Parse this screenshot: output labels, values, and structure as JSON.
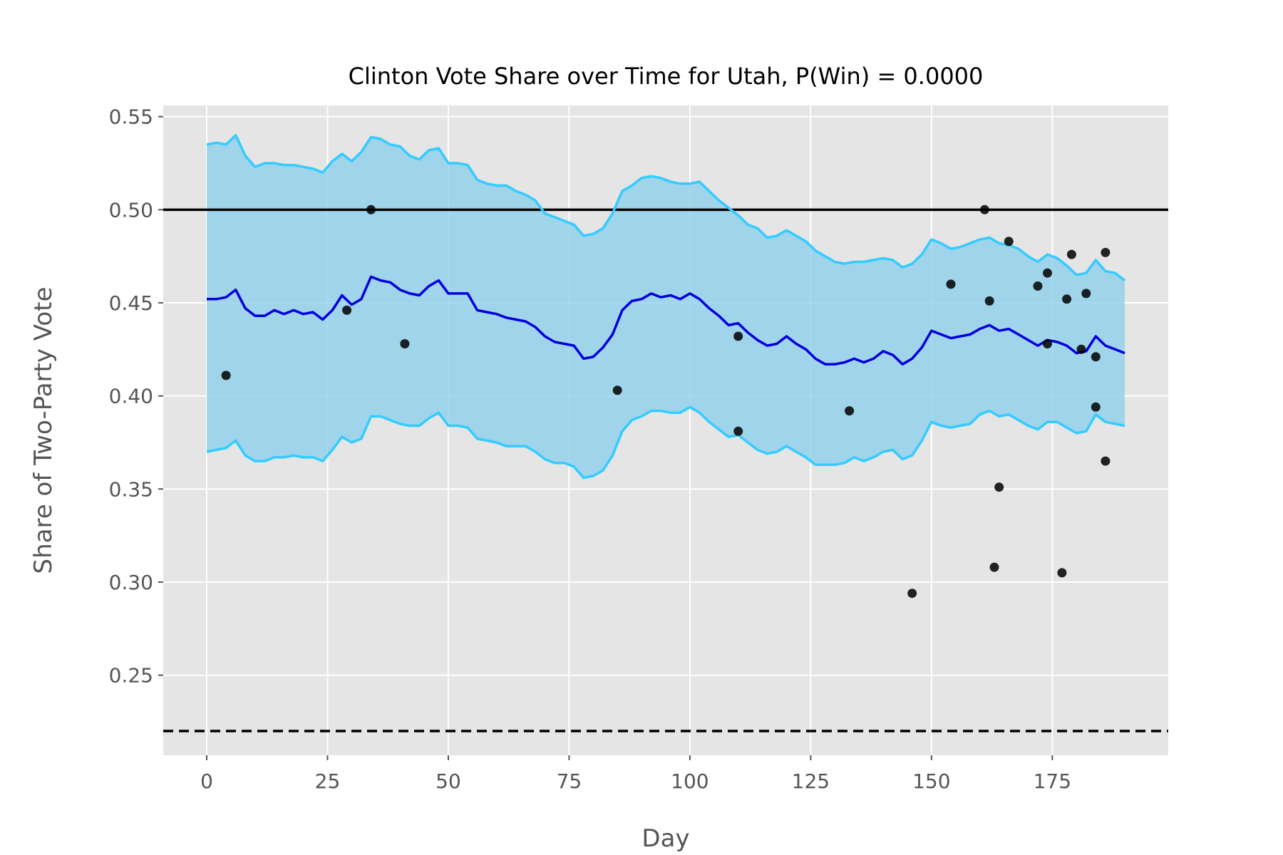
{
  "chart_data": {
    "type": "line",
    "title": "Clinton Vote Share over Time for Utah, P(Win) = 0.0000",
    "xlabel": "Day",
    "ylabel": "Share of Two-Party Vote",
    "xlim": [
      -9,
      199
    ],
    "ylim": [
      0.207,
      0.556
    ],
    "x_ticks": [
      0,
      25,
      50,
      75,
      100,
      125,
      150,
      175
    ],
    "x_tick_labels": [
      "0",
      "25",
      "50",
      "75",
      "100",
      "125",
      "150",
      "175"
    ],
    "y_ticks": [
      0.25,
      0.3,
      0.35,
      0.4,
      0.45,
      0.5,
      0.55
    ],
    "y_tick_labels": [
      "0.25",
      "0.30",
      "0.35",
      "0.40",
      "0.45",
      "0.50",
      "0.55"
    ],
    "grid": true,
    "reference_lines": [
      {
        "y": 0.5,
        "style": "solid",
        "color": "#000000"
      },
      {
        "y": 0.22,
        "style": "dashed",
        "color": "#000000"
      }
    ],
    "band_color": "#87ceeb",
    "band_edge_color": "#33ccff",
    "mean_color": "#0000dd",
    "days": [
      0,
      2,
      4,
      6,
      8,
      10,
      12,
      14,
      16,
      18,
      20,
      22,
      24,
      26,
      28,
      30,
      32,
      34,
      36,
      38,
      40,
      42,
      44,
      46,
      48,
      50,
      52,
      54,
      56,
      58,
      60,
      62,
      64,
      66,
      68,
      70,
      72,
      74,
      76,
      78,
      80,
      82,
      84,
      86,
      88,
      90,
      92,
      94,
      96,
      98,
      100,
      102,
      104,
      106,
      108,
      110,
      112,
      114,
      116,
      118,
      120,
      122,
      124,
      126,
      128,
      130,
      132,
      134,
      136,
      138,
      140,
      142,
      144,
      146,
      148,
      150,
      152,
      154,
      156,
      158,
      160,
      162,
      164,
      166,
      168,
      170,
      172,
      174,
      176,
      178,
      180,
      182,
      184,
      186,
      188,
      190
    ],
    "series": [
      {
        "role": "mean",
        "values": [
          0.452,
          0.452,
          0.453,
          0.457,
          0.447,
          0.443,
          0.443,
          0.446,
          0.444,
          0.446,
          0.444,
          0.445,
          0.441,
          0.446,
          0.454,
          0.449,
          0.452,
          0.464,
          0.462,
          0.461,
          0.457,
          0.455,
          0.454,
          0.459,
          0.462,
          0.455,
          0.455,
          0.455,
          0.446,
          0.445,
          0.444,
          0.442,
          0.441,
          0.44,
          0.437,
          0.432,
          0.429,
          0.428,
          0.427,
          0.42,
          0.421,
          0.426,
          0.433,
          0.446,
          0.451,
          0.452,
          0.455,
          0.453,
          0.454,
          0.452,
          0.455,
          0.452,
          0.447,
          0.443,
          0.438,
          0.439,
          0.434,
          0.43,
          0.427,
          0.428,
          0.432,
          0.428,
          0.425,
          0.42,
          0.417,
          0.417,
          0.418,
          0.42,
          0.418,
          0.42,
          0.424,
          0.422,
          0.417,
          0.42,
          0.426,
          0.435,
          0.433,
          0.431,
          0.432,
          0.433,
          0.436,
          0.438,
          0.435,
          0.436,
          0.433,
          0.43,
          0.427,
          0.43,
          0.429,
          0.427,
          0.423,
          0.424,
          0.432,
          0.427,
          0.425,
          0.423
        ]
      },
      {
        "role": "upper",
        "values": [
          0.535,
          0.536,
          0.535,
          0.54,
          0.529,
          0.523,
          0.525,
          0.525,
          0.524,
          0.524,
          0.523,
          0.522,
          0.52,
          0.526,
          0.53,
          0.526,
          0.531,
          0.539,
          0.538,
          0.535,
          0.534,
          0.529,
          0.527,
          0.532,
          0.533,
          0.525,
          0.525,
          0.524,
          0.516,
          0.514,
          0.513,
          0.513,
          0.51,
          0.508,
          0.505,
          0.498,
          0.496,
          0.494,
          0.492,
          0.486,
          0.487,
          0.49,
          0.498,
          0.51,
          0.513,
          0.517,
          0.518,
          0.517,
          0.515,
          0.514,
          0.514,
          0.515,
          0.51,
          0.505,
          0.501,
          0.497,
          0.492,
          0.49,
          0.485,
          0.486,
          0.489,
          0.486,
          0.483,
          0.478,
          0.475,
          0.472,
          0.471,
          0.472,
          0.472,
          0.473,
          0.474,
          0.473,
          0.469,
          0.471,
          0.476,
          0.484,
          0.482,
          0.479,
          0.48,
          0.482,
          0.484,
          0.485,
          0.482,
          0.481,
          0.479,
          0.475,
          0.472,
          0.476,
          0.474,
          0.47,
          0.465,
          0.466,
          0.473,
          0.467,
          0.466,
          0.462
        ]
      },
      {
        "role": "lower",
        "values": [
          0.37,
          0.371,
          0.372,
          0.376,
          0.368,
          0.365,
          0.365,
          0.367,
          0.367,
          0.368,
          0.367,
          0.367,
          0.365,
          0.371,
          0.378,
          0.375,
          0.377,
          0.389,
          0.389,
          0.387,
          0.385,
          0.384,
          0.384,
          0.388,
          0.391,
          0.384,
          0.384,
          0.383,
          0.377,
          0.376,
          0.375,
          0.373,
          0.373,
          0.373,
          0.37,
          0.366,
          0.364,
          0.364,
          0.362,
          0.356,
          0.357,
          0.36,
          0.368,
          0.381,
          0.387,
          0.389,
          0.392,
          0.392,
          0.391,
          0.391,
          0.394,
          0.391,
          0.386,
          0.382,
          0.378,
          0.379,
          0.375,
          0.371,
          0.369,
          0.37,
          0.373,
          0.37,
          0.367,
          0.363,
          0.363,
          0.363,
          0.364,
          0.367,
          0.365,
          0.367,
          0.37,
          0.371,
          0.366,
          0.368,
          0.376,
          0.386,
          0.384,
          0.383,
          0.384,
          0.385,
          0.39,
          0.392,
          0.389,
          0.39,
          0.387,
          0.384,
          0.382,
          0.386,
          0.386,
          0.383,
          0.38,
          0.381,
          0.39,
          0.386,
          0.385,
          0.384
        ]
      }
    ],
    "polls": [
      {
        "x": 4,
        "y": 0.411
      },
      {
        "x": 29,
        "y": 0.446
      },
      {
        "x": 34,
        "y": 0.5
      },
      {
        "x": 41,
        "y": 0.428
      },
      {
        "x": 85,
        "y": 0.403
      },
      {
        "x": 110,
        "y": 0.432
      },
      {
        "x": 110,
        "y": 0.381
      },
      {
        "x": 133,
        "y": 0.392
      },
      {
        "x": 146,
        "y": 0.294
      },
      {
        "x": 154,
        "y": 0.46
      },
      {
        "x": 161,
        "y": 0.5
      },
      {
        "x": 162,
        "y": 0.451
      },
      {
        "x": 163,
        "y": 0.308
      },
      {
        "x": 164,
        "y": 0.351
      },
      {
        "x": 166,
        "y": 0.483
      },
      {
        "x": 172,
        "y": 0.459
      },
      {
        "x": 174,
        "y": 0.466
      },
      {
        "x": 174,
        "y": 0.428
      },
      {
        "x": 177,
        "y": 0.305
      },
      {
        "x": 178,
        "y": 0.452
      },
      {
        "x": 179,
        "y": 0.476
      },
      {
        "x": 181,
        "y": 0.425
      },
      {
        "x": 182,
        "y": 0.455
      },
      {
        "x": 184,
        "y": 0.421
      },
      {
        "x": 184,
        "y": 0.394
      },
      {
        "x": 186,
        "y": 0.365
      },
      {
        "x": 186,
        "y": 0.477
      }
    ]
  }
}
